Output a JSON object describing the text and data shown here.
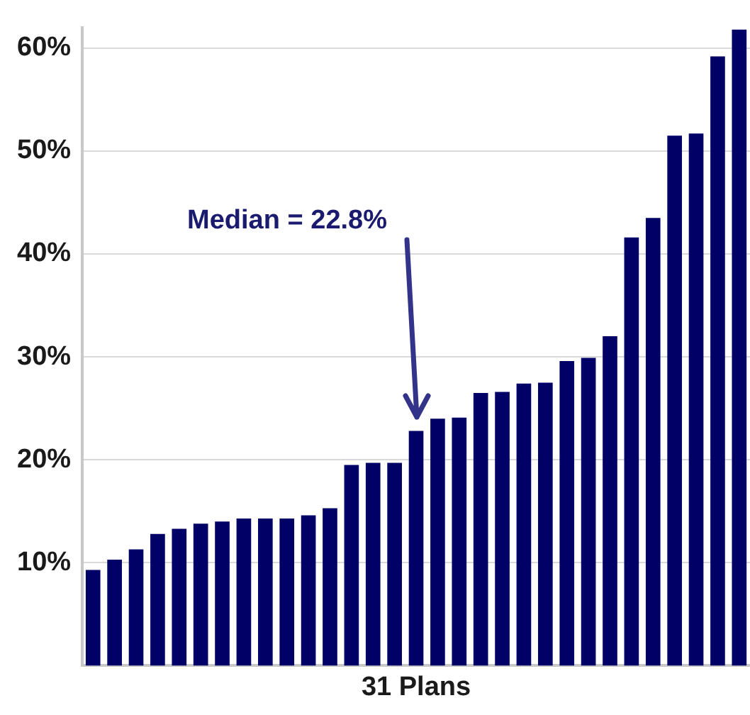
{
  "chart_data": {
    "type": "bar",
    "xlabel": "31 Plans",
    "categories": [
      null,
      null,
      null,
      null,
      null,
      null,
      null,
      null,
      null,
      null,
      null,
      null,
      null,
      null,
      null,
      null,
      null,
      null,
      null,
      null,
      null,
      null,
      null,
      null,
      null,
      null,
      null,
      null,
      null,
      null,
      null
    ],
    "values": [
      9.3,
      10.3,
      11.3,
      12.8,
      13.3,
      13.8,
      14.0,
      14.3,
      14.3,
      14.3,
      14.6,
      15.3,
      19.5,
      19.7,
      19.7,
      22.8,
      24.0,
      24.1,
      26.5,
      26.6,
      27.4,
      27.5,
      29.6,
      29.9,
      32.0,
      41.6,
      43.5,
      51.5,
      51.7,
      59.2,
      61.8
    ],
    "color": "#000066",
    "ylim": [
      0,
      62
    ],
    "yticks": [
      {
        "value": 10,
        "label": "10%"
      },
      {
        "value": 20,
        "label": "20%"
      },
      {
        "value": 30,
        "label": "30%"
      },
      {
        "value": 40,
        "label": "40%"
      },
      {
        "value": 50,
        "label": "50%"
      },
      {
        "value": 60,
        "label": "60%"
      }
    ],
    "grid": "y",
    "legend": false,
    "annotations": [
      "Median = 22.8%"
    ]
  }
}
